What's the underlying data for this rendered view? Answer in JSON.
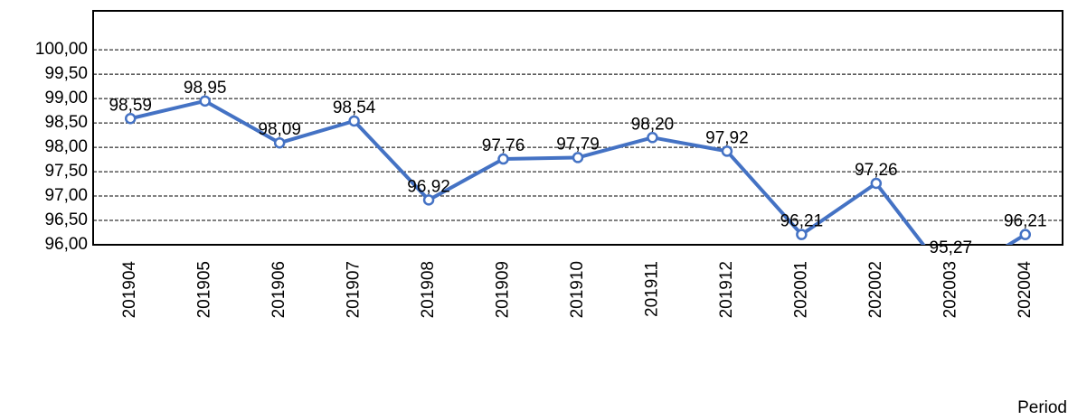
{
  "chart_data": {
    "type": "line",
    "x_label": "Period",
    "categories": [
      "201904",
      "201905",
      "201906",
      "201907",
      "201908",
      "201909",
      "201910",
      "201911",
      "201912",
      "202001",
      "202002",
      "202003",
      "202004"
    ],
    "series": [
      {
        "color": "#4472c4",
        "values": [
          98.59,
          98.95,
          98.09,
          98.54,
          96.92,
          97.76,
          97.79,
          98.2,
          97.92,
          96.21,
          97.26,
          95.27,
          96.21
        ],
        "value_labels": [
          "98,59",
          "98,95",
          "98,09",
          "98,54",
          "96,92",
          "97,76",
          "97,79",
          "98,20",
          "97,92",
          "96,21",
          "97,26",
          "95,27",
          "96,21"
        ]
      }
    ],
    "ylim": [
      96,
      100.8
    ],
    "yticks": [
      {
        "value": 96,
        "label": "96,00"
      },
      {
        "value": 96.5,
        "label": "96,50"
      },
      {
        "value": 97,
        "label": "97,00"
      },
      {
        "value": 97.5,
        "label": "97,50"
      },
      {
        "value": 98,
        "label": "98,00"
      },
      {
        "value": 98.5,
        "label": "98,50"
      },
      {
        "value": 99,
        "label": "99,00"
      },
      {
        "value": 99.5,
        "label": "99,50"
      },
      {
        "value": 100,
        "label": "100,00"
      }
    ],
    "grid": true
  }
}
